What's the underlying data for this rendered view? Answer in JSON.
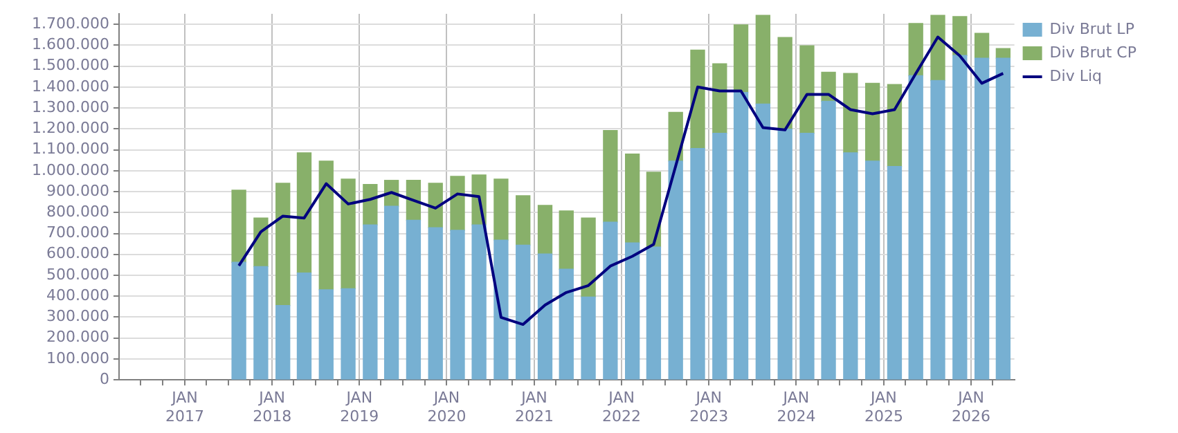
{
  "chart_data": {
    "type": "bar",
    "stacked": true,
    "x": [
      "2017-08-15",
      "2017-11-15",
      "2018-02-15",
      "2018-05-15",
      "2018-08-15",
      "2018-11-15",
      "2019-02-15",
      "2019-05-15",
      "2019-08-15",
      "2019-11-15",
      "2020-02-15",
      "2020-05-15",
      "2020-08-15",
      "2020-11-15",
      "2021-02-15",
      "2021-05-15",
      "2021-08-15",
      "2021-11-15",
      "2022-02-15",
      "2022-05-15",
      "2022-08-15",
      "2022-11-15",
      "2023-02-15",
      "2023-05-15",
      "2023-08-15",
      "2023-11-15",
      "2024-02-15",
      "2024-05-15",
      "2024-08-15",
      "2024-11-15",
      "2025-02-15",
      "2025-05-15",
      "2025-08-15",
      "2025-11-15",
      "2026-02-15",
      "2026-05-15"
    ],
    "series": [
      {
        "name": "Div Brut LP",
        "color": "#77b0d2",
        "values": [
          562000,
          542000,
          356000,
          511000,
          431000,
          436000,
          741000,
          830000,
          763000,
          728000,
          715000,
          741000,
          668000,
          644000,
          602000,
          529000,
          396000,
          754000,
          655000,
          635000,
          1046000,
          1106000,
          1179000,
          1374000,
          1319000,
          1199000,
          1179000,
          1332000,
          1086000,
          1046000,
          1020000,
          1454000,
          1431000,
          1551000,
          1538000,
          1538000
        ]
      },
      {
        "name": "Div Brut CP",
        "color": "#88b06a",
        "values": [
          345000,
          232000,
          584000,
          575000,
          615000,
          524000,
          193000,
          124000,
          191000,
          212000,
          258000,
          239000,
          292000,
          237000,
          232000,
          279000,
          378000,
          438000,
          425000,
          358000,
          233000,
          471000,
          332000,
          323000,
          424000,
          438000,
          418000,
          139000,
          379000,
          372000,
          392000,
          250000,
          312000,
          186000,
          119000,
          46000
        ]
      },
      {
        "name": "Div Liq",
        "type": "line",
        "color": "#00007f",
        "values": [
          546000,
          708000,
          783000,
          774000,
          938000,
          841000,
          863000,
          896000,
          858000,
          821000,
          889000,
          876000,
          299000,
          265000,
          358000,
          418000,
          451000,
          544000,
          591000,
          648000,
          1022000,
          1400000,
          1381000,
          1381000,
          1206000,
          1195000,
          1365000,
          1365000,
          1292000,
          1272000,
          1292000,
          1465000,
          1639000,
          1549000,
          1418000,
          1465000
        ]
      }
    ],
    "xlim": [
      "2016-04-01",
      "2026-07-01"
    ],
    "xticks": [
      {
        "value": "2016-07-01",
        "label": null
      },
      {
        "value": "2016-10-01",
        "label": null
      },
      {
        "value": "2017-01-01",
        "label": "JAN\n2017"
      },
      {
        "value": "2017-04-01",
        "label": null
      },
      {
        "value": "2017-07-01",
        "label": null
      },
      {
        "value": "2017-10-01",
        "label": null
      },
      {
        "value": "2018-01-01",
        "label": "JAN\n2018"
      },
      {
        "value": "2018-04-01",
        "label": null
      },
      {
        "value": "2018-07-01",
        "label": null
      },
      {
        "value": "2018-10-01",
        "label": null
      },
      {
        "value": "2019-01-01",
        "label": "JAN\n2019"
      },
      {
        "value": "2019-04-01",
        "label": null
      },
      {
        "value": "2019-07-01",
        "label": null
      },
      {
        "value": "2019-10-01",
        "label": null
      },
      {
        "value": "2020-01-01",
        "label": "JAN\n2020"
      },
      {
        "value": "2020-04-01",
        "label": null
      },
      {
        "value": "2020-07-01",
        "label": null
      },
      {
        "value": "2020-10-01",
        "label": null
      },
      {
        "value": "2021-01-01",
        "label": "JAN\n2021"
      },
      {
        "value": "2021-04-01",
        "label": null
      },
      {
        "value": "2021-07-01",
        "label": null
      },
      {
        "value": "2021-10-01",
        "label": null
      },
      {
        "value": "2022-01-01",
        "label": "JAN\n2022"
      },
      {
        "value": "2022-04-01",
        "label": null
      },
      {
        "value": "2022-07-01",
        "label": null
      },
      {
        "value": "2022-10-01",
        "label": null
      },
      {
        "value": "2023-01-01",
        "label": "JAN\n2023"
      },
      {
        "value": "2023-04-01",
        "label": null
      },
      {
        "value": "2023-07-01",
        "label": null
      },
      {
        "value": "2023-10-01",
        "label": null
      },
      {
        "value": "2024-01-01",
        "label": "JAN\n2024"
      },
      {
        "value": "2024-04-01",
        "label": null
      },
      {
        "value": "2024-07-01",
        "label": null
      },
      {
        "value": "2024-10-01",
        "label": null
      },
      {
        "value": "2025-01-01",
        "label": "JAN\n2025"
      },
      {
        "value": "2025-04-01",
        "label": null
      },
      {
        "value": "2025-07-01",
        "label": null
      },
      {
        "value": "2025-10-01",
        "label": null
      },
      {
        "value": "2026-01-01",
        "label": "JAN\n2026"
      },
      {
        "value": "2026-04-01",
        "label": null
      }
    ],
    "ylim": [
      0,
      1750000
    ],
    "yticks": [
      {
        "value": 0,
        "label": "0"
      },
      {
        "value": 100000,
        "label": "100.000"
      },
      {
        "value": 200000,
        "label": "200.000"
      },
      {
        "value": 300000,
        "label": "300.000"
      },
      {
        "value": 400000,
        "label": "400.000"
      },
      {
        "value": 500000,
        "label": "500.000"
      },
      {
        "value": 600000,
        "label": "600.000"
      },
      {
        "value": 700000,
        "label": "700.000"
      },
      {
        "value": 800000,
        "label": "800.000"
      },
      {
        "value": 900000,
        "label": "900.000"
      },
      {
        "value": 1000000,
        "label": "1.000.000"
      },
      {
        "value": 1100000,
        "label": "1.100.000"
      },
      {
        "value": 1200000,
        "label": "1.200.000"
      },
      {
        "value": 1300000,
        "label": "1.300.000"
      },
      {
        "value": 1400000,
        "label": "1.400.000"
      },
      {
        "value": 1500000,
        "label": "1.500.000"
      },
      {
        "value": 1600000,
        "label": "1.600.000"
      },
      {
        "value": 1700000,
        "label": "1.700.000"
      }
    ],
    "grid": true,
    "legend": "top right",
    "marker": "none",
    "line_style": "solid"
  }
}
